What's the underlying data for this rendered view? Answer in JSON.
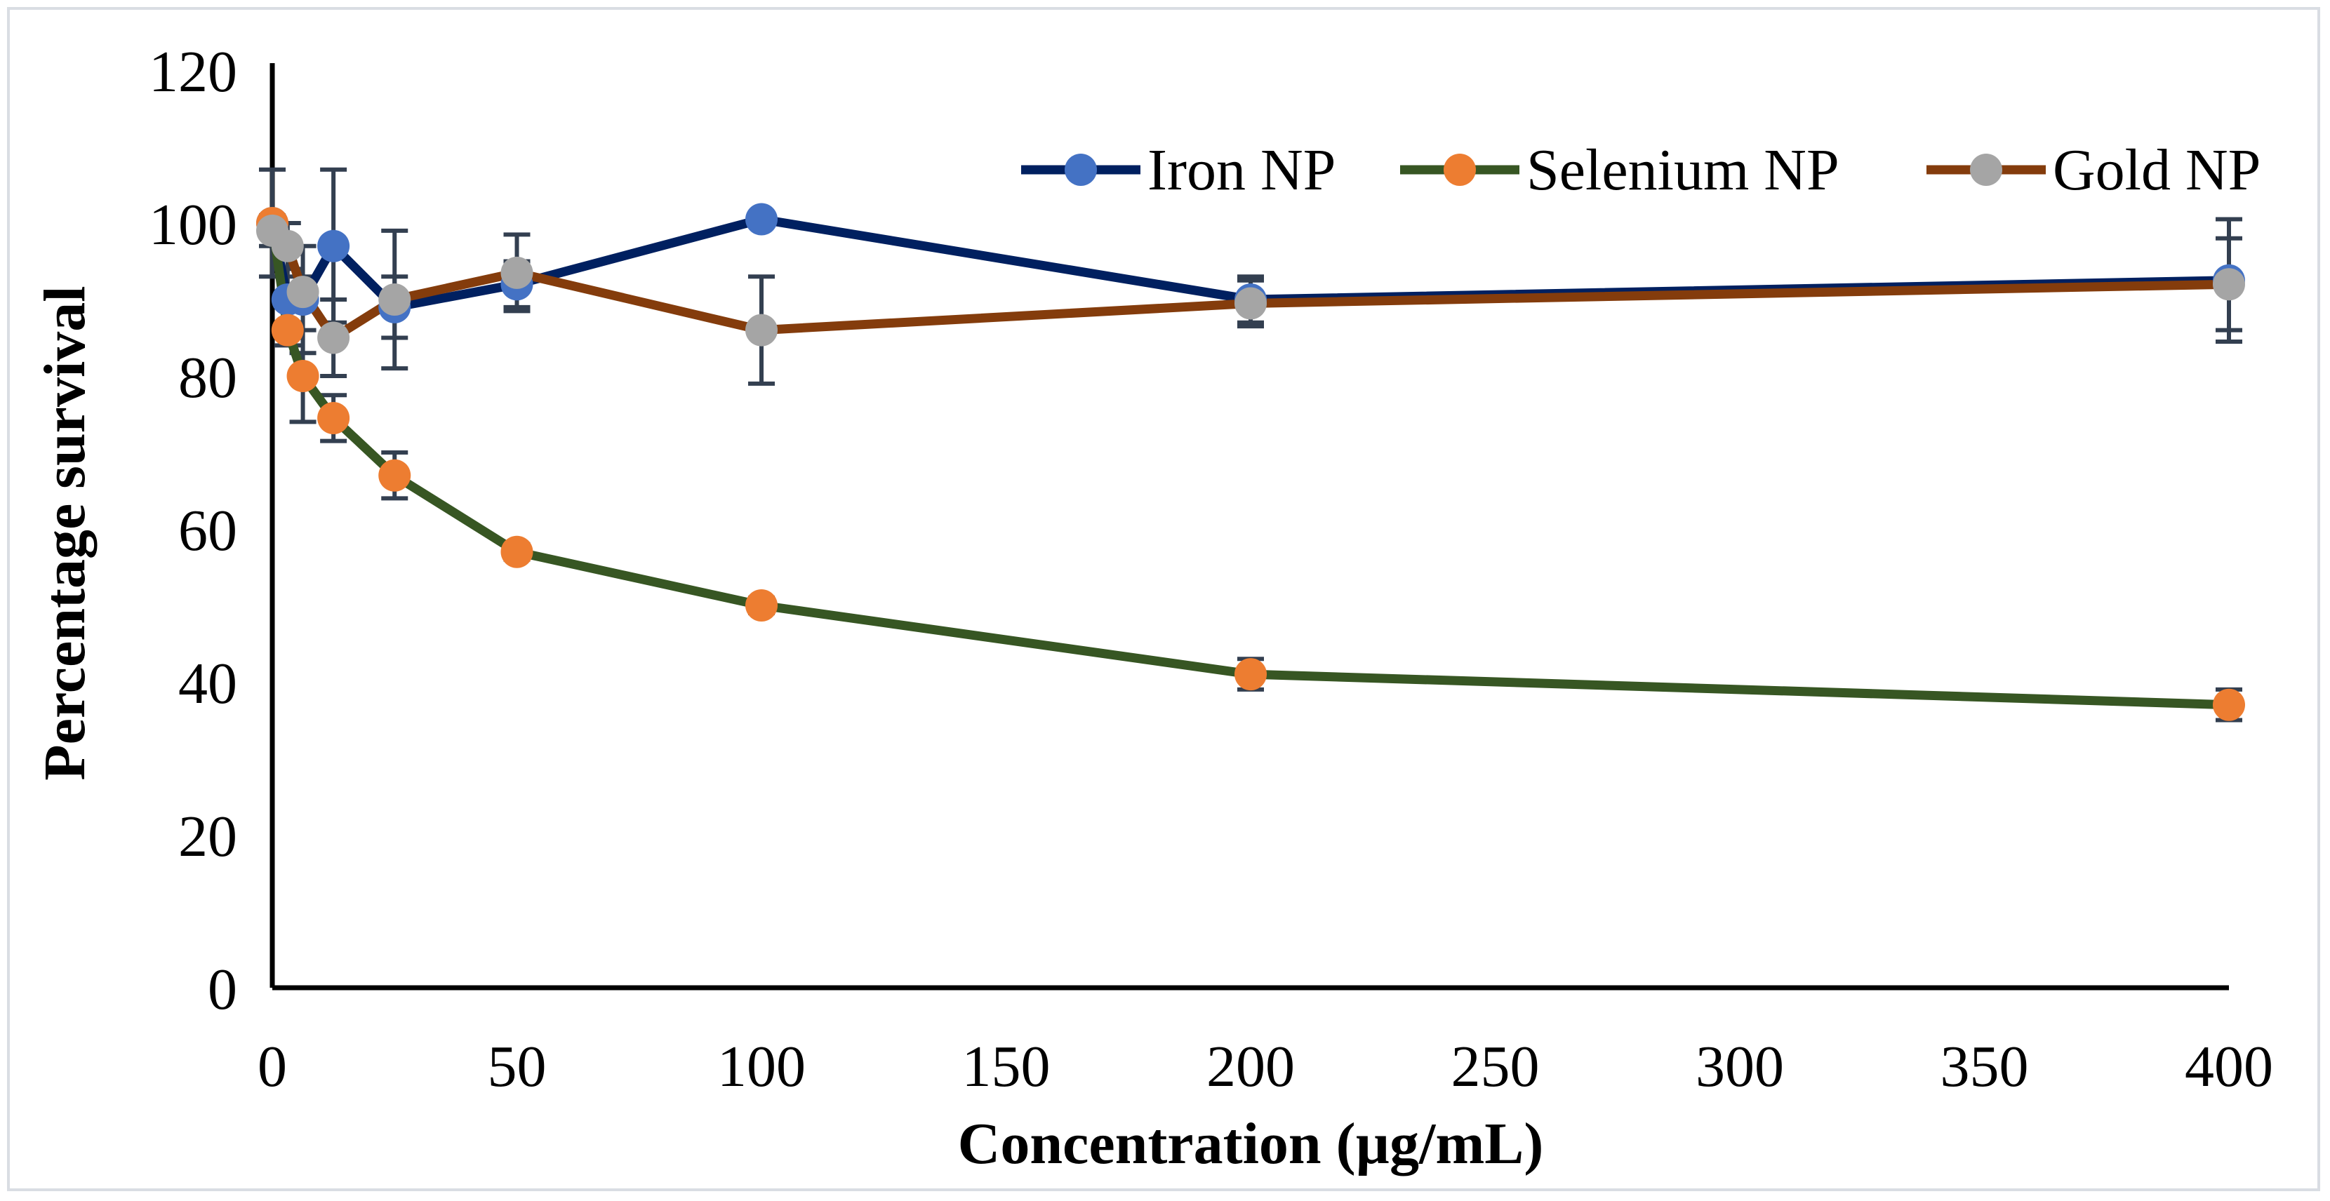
{
  "chart_data": {
    "type": "line",
    "title": "",
    "xlabel": "Concentration (µg/mL)",
    "ylabel": "Percentage survival",
    "xlim": [
      0,
      400
    ],
    "ylim": [
      0,
      120
    ],
    "xticks": [
      0,
      50,
      100,
      150,
      200,
      250,
      300,
      350,
      400
    ],
    "yticks": [
      0,
      20,
      40,
      60,
      80,
      100,
      120
    ],
    "legend_position": "top-right",
    "x": [
      0,
      3.125,
      6.25,
      12.5,
      25,
      50,
      100,
      200,
      400
    ],
    "series": [
      {
        "name": "Iron NP",
        "line_color": "#002060",
        "marker_color": "#4472c4",
        "values": [
          100,
          90,
          90,
          97,
          89,
          92,
          100.5,
          90,
          92.5
        ],
        "errors": [
          7,
          6,
          7,
          10,
          4,
          3,
          0,
          3,
          8
        ]
      },
      {
        "name": "Selenium NP",
        "line_color": "#375623",
        "marker_color": "#ed7d31",
        "values": [
          100,
          86,
          80,
          74.5,
          67,
          57,
          50,
          41,
          37
        ],
        "errors": [
          1,
          1,
          6,
          3,
          3,
          1,
          1,
          2,
          2
        ]
      },
      {
        "name": "Gold NP",
        "line_color": "#843c0c",
        "marker_color": "#a5a5a5",
        "values": [
          99,
          97,
          91,
          85,
          90,
          93.5,
          86,
          89.5,
          92
        ],
        "errors": [
          2,
          3,
          2,
          5,
          9,
          5,
          7,
          3,
          6
        ]
      }
    ]
  }
}
